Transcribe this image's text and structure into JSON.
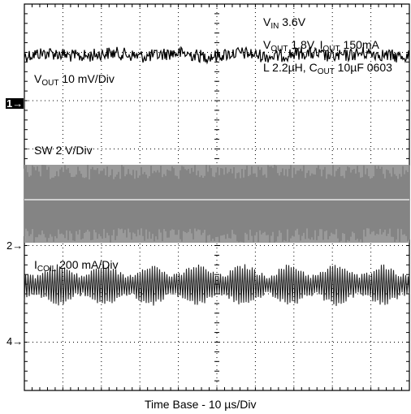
{
  "chart_data": {
    "type": "line",
    "title": "",
    "xlabel": "Time Base - 10 µs/Div",
    "ylabel": "",
    "grid": true,
    "divisions": {
      "x": 10,
      "y": 8
    },
    "conditions": [
      {
        "main": "V",
        "sub": "IN",
        "rest": " 3.6V"
      },
      {
        "main": "V",
        "sub": "OUT",
        "rest": " 1.8V, I",
        "sub2": "OUT",
        "rest2": " 150mA"
      },
      {
        "main": "L 2.2µH, C",
        "sub": "OUT",
        "rest": " 10µF 0603"
      }
    ],
    "series": [
      {
        "name": "V_OUT",
        "main": "V",
        "sub": "OUT",
        "scale": " 10 mV/Div",
        "channel_marker": "1",
        "level_div": 6.95,
        "color": "#000000"
      },
      {
        "name": "SW",
        "main": "SW",
        "sub": "",
        "scale": " 2 V/Div",
        "channel_marker": "2",
        "level_div": 5.0,
        "color": "#7a7a7a"
      },
      {
        "name": "I_COIL",
        "main": "I",
        "sub": "COIL",
        "scale": " 200 mA/Div",
        "channel_marker": "4",
        "level_div": 2.35,
        "color": "#222222"
      }
    ]
  }
}
